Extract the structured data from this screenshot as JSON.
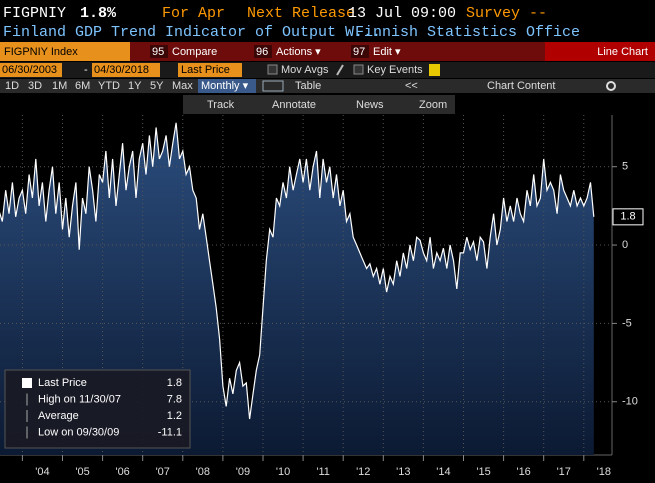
{
  "header": {
    "ticker": "FIGPNIY",
    "last": "1.8%",
    "period": "For Apr",
    "next_release_label": "Next Release",
    "next_release": "13 Jul 09:00",
    "survey": "Survey --",
    "description": "Finland GDP Trend Indicator of Output W...",
    "source": "Finnish Statistics Office"
  },
  "toolbar": {
    "security": "FIGPNIY Index",
    "buttons": [
      {
        "num": "95",
        "label": "Compare"
      },
      {
        "num": "96",
        "label": "Actions ▾"
      },
      {
        "num": "97",
        "label": "Edit ▾"
      }
    ],
    "view": "Line Chart"
  },
  "controls": {
    "start": "06/30/2003",
    "separator": "-",
    "end": "04/30/2018",
    "field": "Last Price",
    "mov_avgs": "Mov Avgs",
    "key_events": "Key Events"
  },
  "periods": [
    "1D",
    "3D",
    "1M",
    "6M",
    "YTD",
    "1Y",
    "5Y",
    "Max"
  ],
  "frequency": "Monthly ▾",
  "table": "Table",
  "collapse": "<<",
  "chart_content": "Chart Content",
  "tools": [
    "Track",
    "Annotate",
    "News",
    "Zoom"
  ],
  "chart_data": {
    "type": "line",
    "color": "#ffffff",
    "fill": "#24446f",
    "x_labels": [
      "'04",
      "'05",
      "'06",
      "'07",
      "'08",
      "'09",
      "'10",
      "'11",
      "'12",
      "'13",
      "'14",
      "'15",
      "'16",
      "'17",
      "'18"
    ],
    "values": [
      2.2,
      1.5,
      3.5,
      2.0,
      4.0,
      1.8,
      3.0,
      3.5,
      2.0,
      4.5,
      3.0,
      5.5,
      2.5,
      4.0,
      1.5,
      3.5,
      5.0,
      2.0,
      4.0,
      1.0,
      3.0,
      0.5,
      2.5,
      4.0,
      -0.3,
      3.0,
      2.0,
      5.0,
      3.5,
      1.5,
      4.5,
      4.0,
      6.0,
      3.0,
      5.5,
      2.5,
      4.5,
      6.5,
      3.5,
      5.0,
      6.0,
      3.0,
      5.5,
      6.5,
      4.5,
      7.0,
      5.0,
      7.5,
      5.5,
      6.0,
      7.0,
      5.0,
      6.5,
      7.8,
      5.5,
      6.0,
      4.5,
      5.0,
      3.5,
      3.0,
      1.0,
      2.0,
      0.5,
      -1.0,
      -2.5,
      -4.0,
      -6.0,
      -9.0,
      -10.3,
      -8.5,
      -9.5,
      -8.0,
      -7.5,
      -9.0,
      -8.8,
      -11.1,
      -9.5,
      -8.0,
      -7.0,
      -4.0,
      -1.0,
      1.0,
      0.5,
      3.0,
      2.5,
      4.0,
      3.0,
      5.0,
      3.5,
      4.5,
      5.5,
      4.0,
      5.5,
      3.5,
      5.0,
      6.0,
      3.0,
      5.5,
      4.0,
      5.0,
      3.0,
      4.5,
      2.5,
      3.5,
      1.5,
      2.0,
      0.5,
      0.0,
      -0.5,
      -1.0,
      -1.5,
      -1.2,
      -2.0,
      -1.5,
      -2.5,
      -1.5,
      -3.0,
      -2.0,
      -2.5,
      -1.0,
      -2.0,
      -0.5,
      -1.5,
      0.0,
      -1.0,
      0.5,
      0.3,
      -0.5,
      -1.0,
      0.5,
      -1.5,
      -0.5,
      -1.0,
      -0.2,
      -1.5,
      0.0,
      -1.0,
      -2.8,
      -0.5,
      -0.5,
      0.5,
      -0.3,
      0.2,
      -1.0,
      0.5,
      0.2,
      -1.5,
      0.5,
      2.0,
      0.0,
      1.0,
      3.0,
      1.5,
      2.5,
      1.5,
      3.0,
      2.0,
      1.5,
      3.5,
      2.5,
      4.5,
      2.5,
      3.0,
      5.5,
      3.5,
      4.0,
      3.5,
      2.0,
      4.5,
      3.5,
      3.0,
      2.5,
      3.5,
      2.5,
      3.0,
      2.5,
      3.0,
      4.0,
      1.8
    ],
    "ylim": [
      -13.4,
      8.3
    ],
    "yticks": [
      5,
      0,
      -5,
      -10
    ],
    "grid": true,
    "legend": [
      {
        "label": "Last Price",
        "value": 1.8
      },
      {
        "label": "High on 11/30/07",
        "value": 7.8
      },
      {
        "label": "Average",
        "value": 1.2
      },
      {
        "label": "Low on 09/30/09",
        "value": -11.1
      }
    ]
  }
}
